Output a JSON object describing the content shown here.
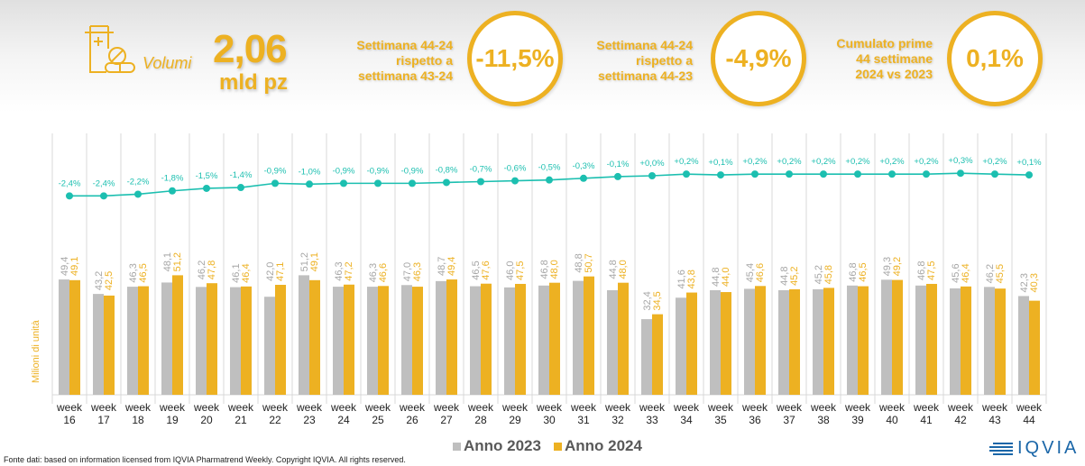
{
  "header": {
    "icon": "medicine-bottle-pills-icon",
    "volumi_label": "Volumi",
    "volumi_value": "2,06",
    "volumi_unit": "mld pz",
    "kpis": [
      {
        "description": "Settimana 44-24\nrispetto a\nsettimana 43-24",
        "value": "-11,5%"
      },
      {
        "description": "Settimana 44-24\nrispetto a\nsettimana 44-23",
        "value": "-4,9%"
      },
      {
        "description": "Cumulato prime\n44 settimane\n2024 vs 2023",
        "value": "0,1%"
      }
    ]
  },
  "colors": {
    "accent": "#EDB122",
    "anno_2023": "#BFBFBF",
    "anno_2024": "#EDB122",
    "line": "#1CBFB0",
    "label_2023": "#A6A6A6",
    "grid": "#D9D9D9"
  },
  "chart_data": {
    "type": "bar",
    "categories": [
      "week\n16",
      "week\n17",
      "week\n18",
      "week\n19",
      "week\n20",
      "week\n21",
      "week\n22",
      "week\n23",
      "week\n24",
      "week\n25",
      "week\n26",
      "week\n27",
      "week\n28",
      "week\n29",
      "week\n30",
      "week\n31",
      "week\n32",
      "week\n33",
      "week\n34",
      "week\n35",
      "week\n36",
      "week\n37",
      "week\n38",
      "week\n39",
      "week\n40",
      "week\n41",
      "week\n42",
      "week\n43",
      "week\n44"
    ],
    "week_numbers": [
      16,
      17,
      18,
      19,
      20,
      21,
      22,
      23,
      24,
      25,
      26,
      27,
      28,
      29,
      30,
      31,
      32,
      33,
      34,
      35,
      36,
      37,
      38,
      39,
      40,
      41,
      42,
      43,
      44
    ],
    "x_prefix": "week",
    "series": [
      {
        "name": "Anno 2023",
        "values": [
          49.4,
          43.2,
          46.3,
          48.1,
          46.2,
          46.1,
          42.0,
          51.2,
          46.3,
          46.3,
          47.0,
          48.7,
          46.5,
          46.0,
          46.8,
          48.8,
          44.8,
          32.4,
          41.6,
          44.8,
          45.4,
          44.8,
          45.2,
          46.8,
          49.3,
          46.8,
          45.6,
          46.2,
          42.3
        ],
        "labels": [
          "49,4",
          "43,2",
          "46,3",
          "48,1",
          "46,2",
          "46,1",
          "42,0",
          "51,2",
          "46,3",
          "46,3",
          "47,0",
          "48,7",
          "46,5",
          "46,0",
          "46,8",
          "48,8",
          "44,8",
          "32,4",
          "41,6",
          "44,8",
          "45,4",
          "44,8",
          "45,2",
          "46,8",
          "49,3",
          "46,8",
          "45,6",
          "46,2",
          "42,3"
        ]
      },
      {
        "name": "Anno 2024",
        "values": [
          49.1,
          42.5,
          46.5,
          51.2,
          47.8,
          46.4,
          47.1,
          49.1,
          47.2,
          46.6,
          46.3,
          49.4,
          47.6,
          47.5,
          48.0,
          50.7,
          48.0,
          34.5,
          43.8,
          44.0,
          46.6,
          45.2,
          45.8,
          46.5,
          49.2,
          47.5,
          46.4,
          45.5,
          40.3
        ],
        "labels": [
          "49,1",
          "42,5",
          "46,5",
          "51,2",
          "47,8",
          "46,4",
          "47,1",
          "49,1",
          "47,2",
          "46,6",
          "46,3",
          "49,4",
          "47,6",
          "47,5",
          "48,0",
          "50,7",
          "48,0",
          "34,5",
          "43,8",
          "44,0",
          "46,6",
          "45,2",
          "45,8",
          "46,5",
          "49,2",
          "47,5",
          "46,4",
          "45,5",
          "40,3"
        ]
      }
    ],
    "cumulative_change": {
      "type": "line",
      "values": [
        -2.4,
        -2.4,
        -2.2,
        -1.8,
        -1.5,
        -1.4,
        -0.9,
        -1.0,
        -0.9,
        -0.9,
        -0.9,
        -0.8,
        -0.7,
        -0.6,
        -0.5,
        -0.3,
        -0.1,
        0.0,
        0.2,
        0.1,
        0.2,
        0.2,
        0.2,
        0.2,
        0.2,
        0.2,
        0.3,
        0.2,
        0.1
      ],
      "labels": [
        "-2,4%",
        "-2,4%",
        "-2,2%",
        "-1,8%",
        "-1,5%",
        "-1,4%",
        "-0,9%",
        "-1,0%",
        "-0,9%",
        "-0,9%",
        "-0,9%",
        "-0,8%",
        "-0,7%",
        "-0,6%",
        "-0,5%",
        "-0,3%",
        "-0,1%",
        "+0,0%",
        "+0,2%",
        "+0,1%",
        "+0,2%",
        "+0,2%",
        "+0,2%",
        "+0,2%",
        "+0,2%",
        "+0,2%",
        "+0,3%",
        "+0,2%",
        "+0,1%"
      ]
    },
    "title": "",
    "xlabel": "",
    "ylabel": "Milioni di unità",
    "ylim": [
      0,
      55
    ],
    "grid": "vertical separators",
    "legend": "bottom-center"
  },
  "legend": {
    "items": [
      {
        "label": "Anno 2023"
      },
      {
        "label": "Anno 2024"
      }
    ]
  },
  "footer": {
    "source": "Fonte dati: based on information licensed from IQVIA Pharmatrend Weekly. Copyright IQVIA. All rights reserved.",
    "logo_text": "IQVIA"
  }
}
